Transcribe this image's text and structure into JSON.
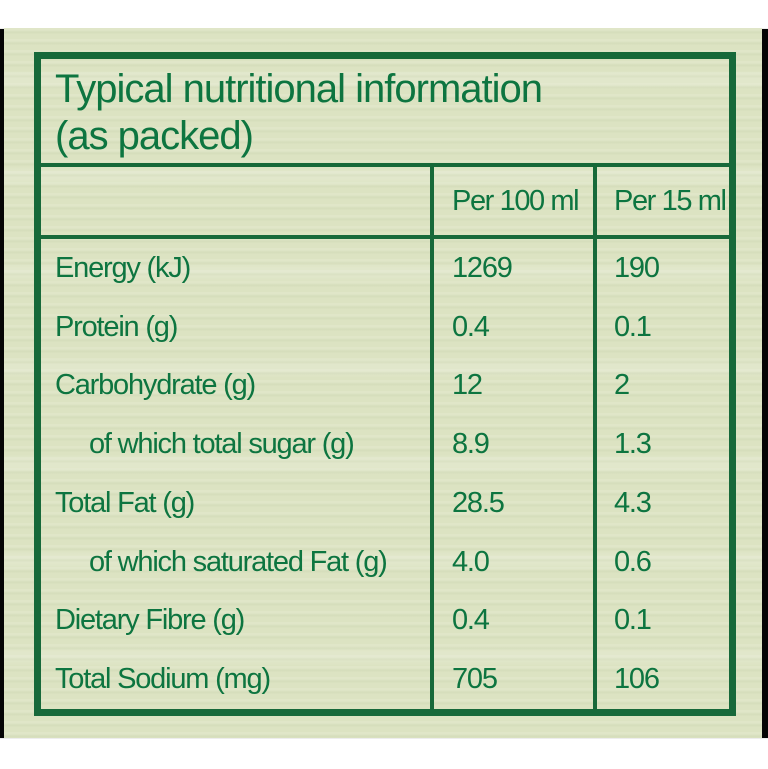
{
  "table": {
    "title_line1": "Typical nutritional information",
    "title_line2": "(as packed)",
    "header": {
      "col_label": "",
      "per100": "Per 100 ml",
      "per15": "Per 15 ml"
    },
    "rows": [
      {
        "label": "Energy (kJ)",
        "per100": "1269",
        "per15": "190"
      },
      {
        "label": "Protein (g)",
        "per100": "0.4",
        "per15": "0.1"
      },
      {
        "label": "Carbohydrate (g)",
        "per100": "12",
        "per15": "2"
      },
      {
        "label": "of which total sugar (g)",
        "per100": "8.9",
        "per15": "1.3"
      },
      {
        "label": "Total Fat (g)",
        "per100": "28.5",
        "per15": "4.3"
      },
      {
        "label": "of which saturated Fat (g)",
        "per100": "4.0",
        "per15": "0.6"
      },
      {
        "label": "Dietary Fibre (g)",
        "per100": "0.4",
        "per15": "0.1"
      },
      {
        "label": "Total Sodium (mg)",
        "per100": "705",
        "per15": "106"
      }
    ]
  },
  "colors": {
    "package_background_green": "#dce3c2",
    "rule_and_border_green": "#17693a",
    "text_green": "#0d7540",
    "edge_black": "#050505",
    "strip_white": "#ffffff"
  }
}
